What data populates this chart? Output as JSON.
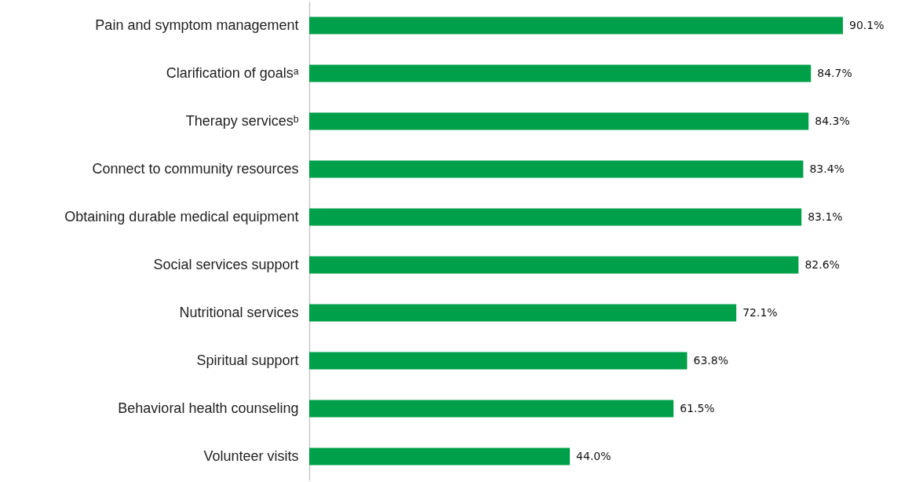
{
  "chart_data": {
    "type": "bar",
    "orientation": "horizontal",
    "categories": [
      "Pain and symptom management",
      "Clarification of goalsᵃ",
      "Therapy servicesᵇ",
      "Connect to community resources",
      "Obtaining durable medical equipment",
      "Social services support",
      "Nutritional services",
      "Spiritual support",
      "Behavioral health counseling",
      "Volunteer visits"
    ],
    "values": [
      90.1,
      84.7,
      84.3,
      83.4,
      83.1,
      82.6,
      72.1,
      63.8,
      61.5,
      44.0
    ],
    "value_labels": [
      "90.1%",
      "84.7%",
      "84.3%",
      "83.4%",
      "83.1%",
      "82.6%",
      "72.1%",
      "63.8%",
      "61.5%",
      "44.0%"
    ],
    "color": "#00a04a"
  }
}
